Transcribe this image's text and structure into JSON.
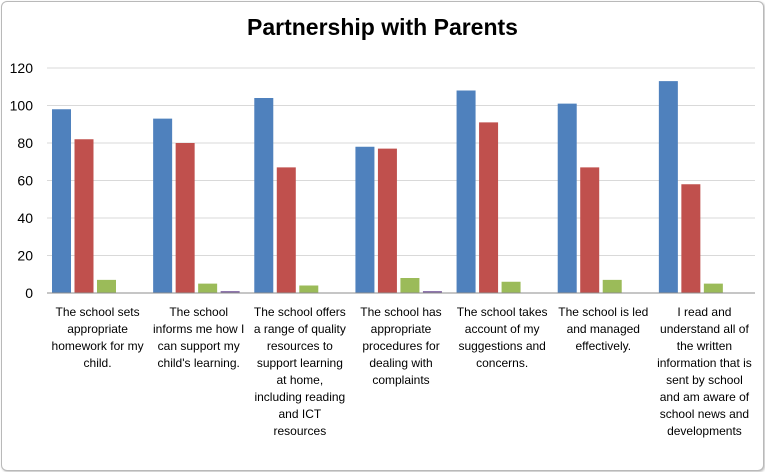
{
  "chart_data": {
    "type": "bar",
    "title": "Partnership with Parents",
    "categories": [
      "The school sets appropriate homework for my child.",
      "The school informs me how I can support my child's learning.",
      "The school offers a range of quality resources to support learning at home, including reading and ICT resources",
      "The school has appropriate procedures for dealing with complaints",
      "The school takes account of my suggestions and concerns.",
      "The school is led and managed effectively.",
      "I read and understand all of the written information that is sent by school and am aware of school news and developments"
    ],
    "series": [
      {
        "color": "#4f81bd",
        "values": [
          98,
          93,
          104,
          78,
          108,
          101,
          113
        ]
      },
      {
        "color": "#c0504d",
        "values": [
          82,
          80,
          67,
          77,
          91,
          67,
          58
        ]
      },
      {
        "color": "#9bbb59",
        "values": [
          7,
          5,
          4,
          8,
          6,
          7,
          5
        ]
      },
      {
        "color": "#8064a2",
        "values": [
          0,
          1,
          0,
          1,
          0,
          0,
          0
        ]
      }
    ],
    "ylim": [
      0,
      120
    ],
    "yticks": [
      "0",
      "20",
      "40",
      "60",
      "80",
      "100",
      "120"
    ],
    "grid": true,
    "legend": "none"
  }
}
